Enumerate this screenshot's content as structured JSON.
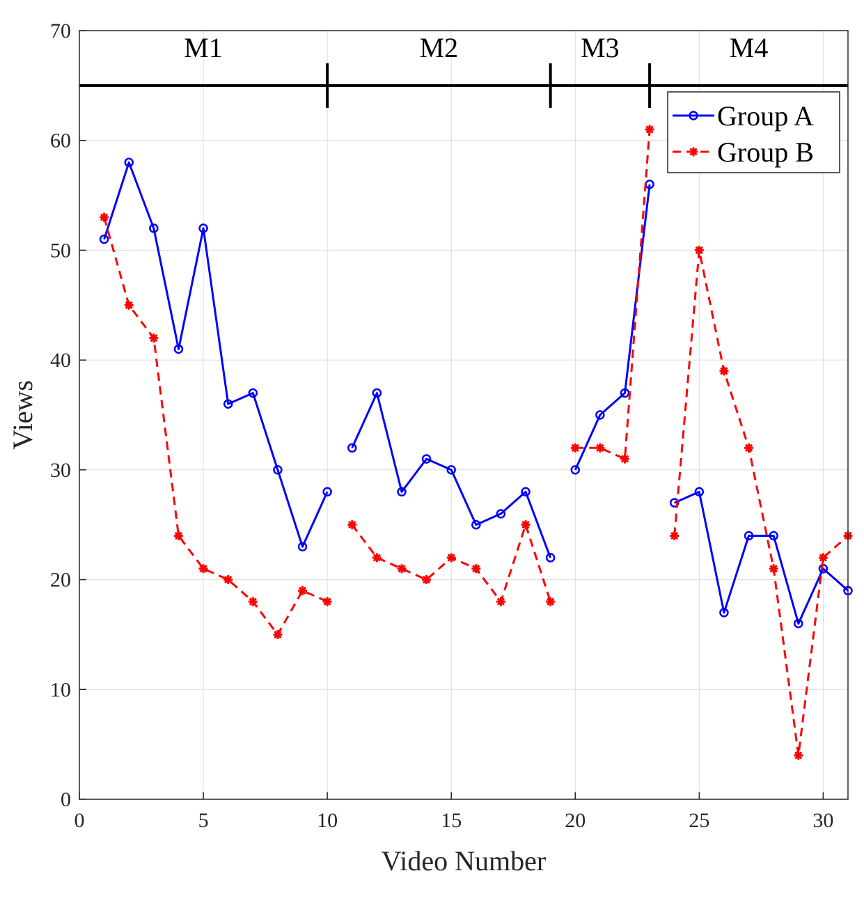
{
  "chart_data": {
    "type": "line",
    "xlabel": "Video Number",
    "ylabel": "Views",
    "xlim": [
      0,
      31
    ],
    "ylim": [
      0,
      70
    ],
    "xticks": [
      0,
      5,
      10,
      15,
      20,
      25,
      30
    ],
    "yticks": [
      0,
      10,
      20,
      30,
      40,
      50,
      60,
      70
    ],
    "grid": true,
    "legend_position": "top-right",
    "segments": [
      {
        "label": "M1",
        "start": 1,
        "end": 10
      },
      {
        "label": "M2",
        "start": 11,
        "end": 19
      },
      {
        "label": "M3",
        "start": 20,
        "end": 23
      },
      {
        "label": "M4",
        "start": 24,
        "end": 31
      }
    ],
    "boundary_line_y": 65,
    "boundaries": [
      10,
      19,
      23
    ],
    "series": [
      {
        "name": "Group A",
        "color": "#0000ff",
        "style": "solid",
        "marker": "circle",
        "points": [
          [
            1,
            51
          ],
          [
            2,
            58
          ],
          [
            3,
            52
          ],
          [
            4,
            41
          ],
          [
            5,
            52
          ],
          [
            6,
            36
          ],
          [
            7,
            37
          ],
          [
            8,
            30
          ],
          [
            9,
            23
          ],
          [
            10,
            28
          ],
          [
            11,
            32
          ],
          [
            12,
            37
          ],
          [
            13,
            28
          ],
          [
            14,
            31
          ],
          [
            15,
            30
          ],
          [
            16,
            25
          ],
          [
            17,
            26
          ],
          [
            18,
            28
          ],
          [
            19,
            22
          ],
          [
            20,
            30
          ],
          [
            21,
            35
          ],
          [
            22,
            37
          ],
          [
            23,
            56
          ],
          [
            24,
            27
          ],
          [
            25,
            28
          ],
          [
            26,
            17
          ],
          [
            27,
            24
          ],
          [
            28,
            24
          ],
          [
            29,
            16
          ],
          [
            30,
            21
          ],
          [
            31,
            19
          ]
        ]
      },
      {
        "name": "Group B",
        "color": "#ff0000",
        "style": "dashed",
        "marker": "asterisk",
        "points": [
          [
            1,
            53
          ],
          [
            2,
            45
          ],
          [
            3,
            42
          ],
          [
            4,
            24
          ],
          [
            5,
            21
          ],
          [
            6,
            20
          ],
          [
            7,
            18
          ],
          [
            8,
            15
          ],
          [
            9,
            19
          ],
          [
            10,
            18
          ],
          [
            11,
            25
          ],
          [
            12,
            22
          ],
          [
            13,
            21
          ],
          [
            14,
            20
          ],
          [
            15,
            22
          ],
          [
            16,
            21
          ],
          [
            17,
            18
          ],
          [
            18,
            25
          ],
          [
            19,
            18
          ],
          [
            20,
            32
          ],
          [
            21,
            32
          ],
          [
            22,
            31
          ],
          [
            23,
            61
          ],
          [
            24,
            24
          ],
          [
            25,
            50
          ],
          [
            26,
            39
          ],
          [
            27,
            32
          ],
          [
            28,
            21
          ],
          [
            29,
            4
          ],
          [
            30,
            22
          ],
          [
            31,
            24
          ]
        ]
      }
    ]
  }
}
